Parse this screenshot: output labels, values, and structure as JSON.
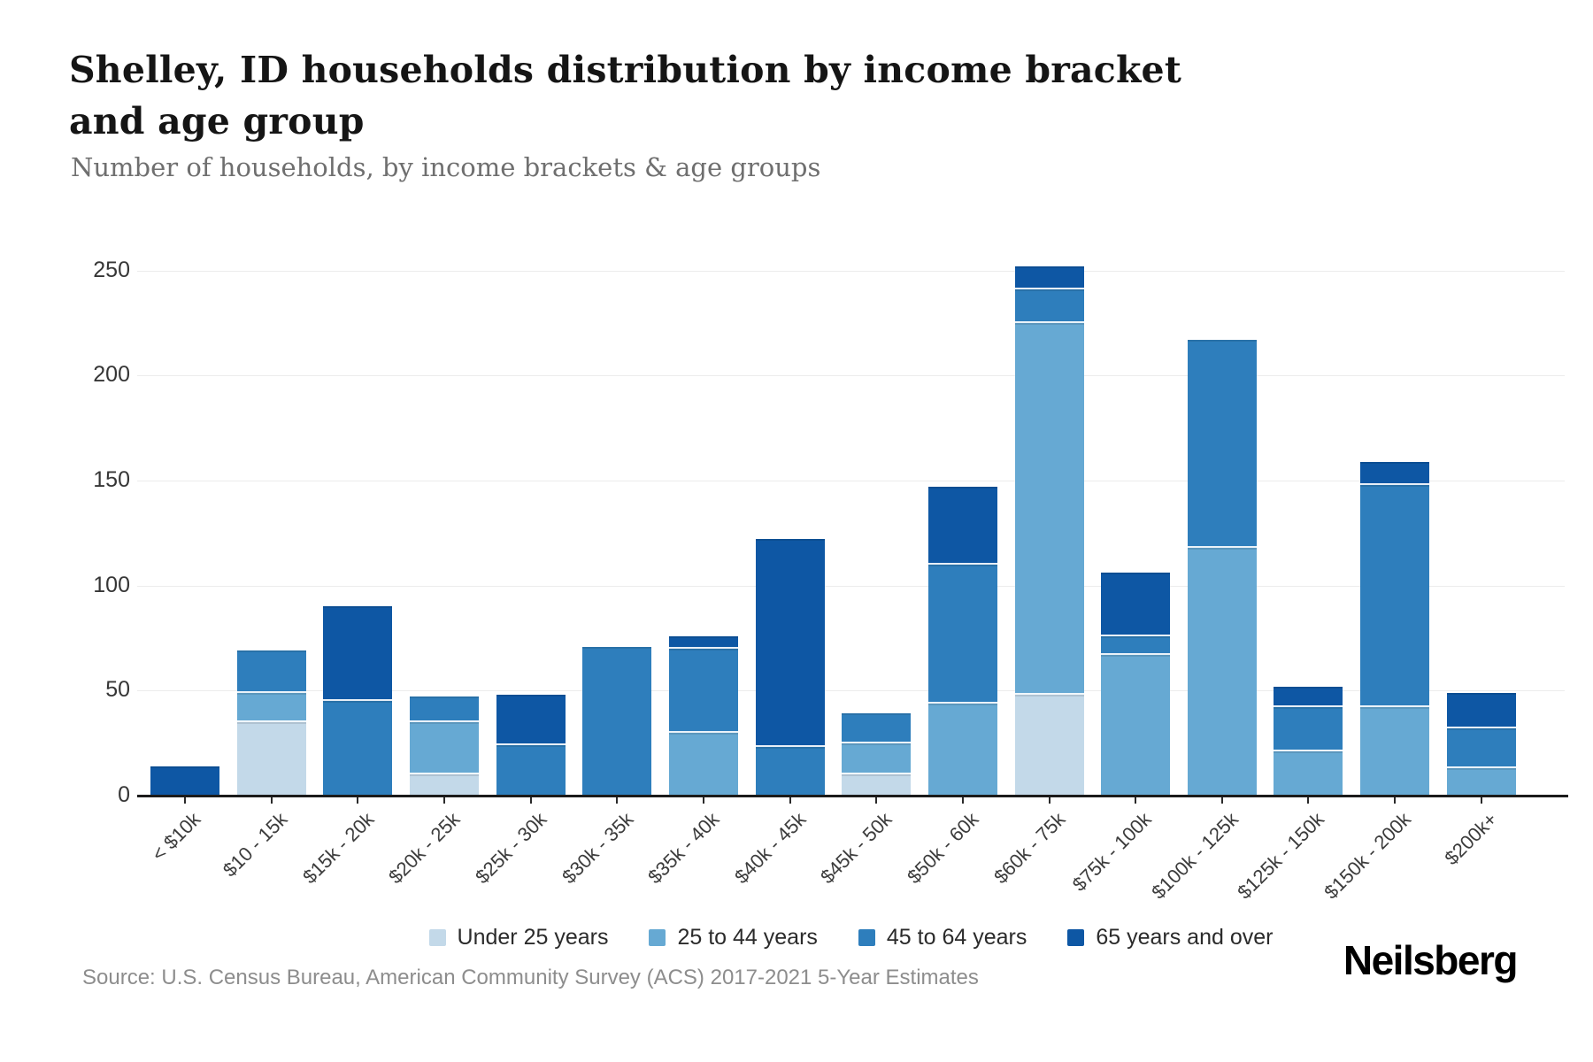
{
  "header": {
    "title": "Shelley, ID households distribution by income bracket and age group",
    "subtitle": "Number of households, by income brackets & age groups"
  },
  "footer": {
    "source": "Source: U.S. Census Bureau, American Community Survey (ACS) 2017-2021 5-Year Estimates",
    "brand": "Neilsberg"
  },
  "colors": {
    "under_25": "#c3d9e9",
    "25_to_44": "#66a9d3",
    "45_to_64": "#2e7ebc",
    "65_plus": "#0e57a4",
    "gridline": "#ececec",
    "axis": "#1b1b1b"
  },
  "chart_data": {
    "type": "bar",
    "stacked": true,
    "title": "Shelley, ID households distribution by income bracket and age group",
    "subtitle": "Number of households, by income brackets & age groups",
    "xlabel": "",
    "ylabel": "Number of households",
    "ylim": [
      0,
      250
    ],
    "yticks": [
      0,
      50,
      100,
      150,
      200,
      250
    ],
    "grid": true,
    "legend_position": "bottom",
    "categories": [
      "< $10k",
      "$10 - 15k",
      "$15k - 20k",
      "$20k - 25k",
      "$25k - 30k",
      "$30k - 35k",
      "$35k - 40k",
      "$40k - 45k",
      "$45k - 50k",
      "$50k - 60k",
      "$60k - 75k",
      "$75k - 100k",
      "$100k - 125k",
      "$125k - 150k",
      "$150k - 200k",
      "$200k+"
    ],
    "series": [
      {
        "name": "Under 25 years",
        "color": "#c3d9e9",
        "values": [
          0,
          35,
          0,
          10,
          0,
          0,
          0,
          0,
          10,
          0,
          48,
          0,
          0,
          0,
          0,
          0
        ]
      },
      {
        "name": "25 to 44 years",
        "color": "#66a9d3",
        "values": [
          0,
          14,
          0,
          25,
          0,
          0,
          30,
          0,
          15,
          44,
          177,
          67,
          118,
          21,
          42,
          13
        ]
      },
      {
        "name": "45 to 64 years",
        "color": "#2e7ebc",
        "values": [
          0,
          20,
          45,
          12,
          24,
          71,
          40,
          23,
          14,
          66,
          16,
          9,
          99,
          21,
          106,
          19
        ]
      },
      {
        "name": "65 years and over",
        "color": "#0e57a4",
        "values": [
          14,
          0,
          45,
          0,
          24,
          0,
          6,
          99,
          0,
          37,
          11,
          30,
          0,
          10,
          11,
          17
        ]
      }
    ],
    "totals": [
      14,
      69,
      90,
      47,
      48,
      71,
      76,
      122,
      39,
      147,
      252,
      106,
      217,
      52,
      159,
      49
    ]
  }
}
